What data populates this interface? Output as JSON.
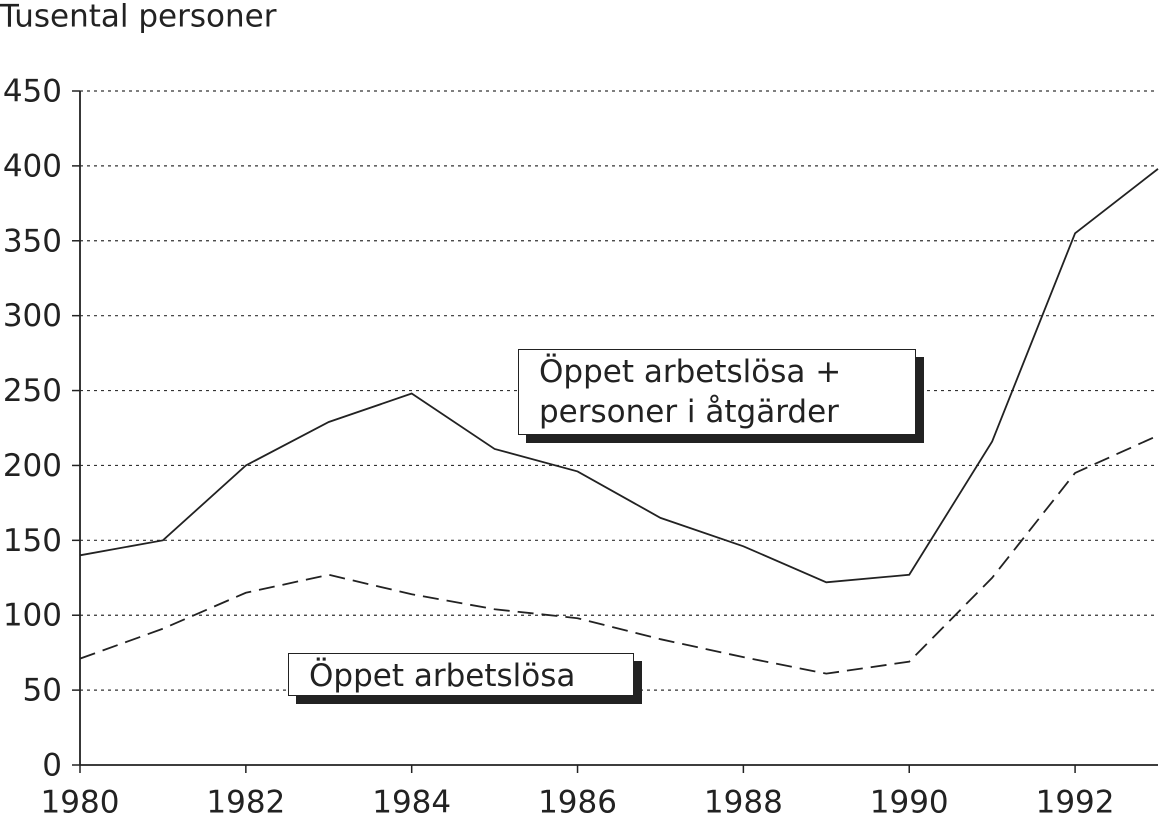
{
  "chart_data": {
    "type": "line",
    "y_axis_label": "Tusental personer",
    "x": [
      1980,
      1981,
      1982,
      1983,
      1984,
      1985,
      1986,
      1987,
      1988,
      1989,
      1990,
      1991,
      1992,
      1993
    ],
    "series": [
      {
        "name": "Öppet arbetslösa + personer i åtgärder",
        "color": "#222222",
        "style": "solid",
        "values": [
          140,
          150,
          200,
          229,
          248,
          211,
          196,
          165,
          146,
          122,
          127,
          216,
          355,
          398
        ]
      },
      {
        "name": "Öppet arbetslösa",
        "color": "#222222",
        "style": "dashed",
        "values": [
          71,
          91,
          115,
          127,
          114,
          104,
          98,
          84,
          72,
          61,
          69,
          125,
          195,
          220
        ]
      }
    ],
    "xlim": [
      1980,
      1993
    ],
    "xticks": [
      1980,
      1982,
      1984,
      1986,
      1988,
      1990,
      1992
    ],
    "ylim": [
      0,
      450
    ],
    "yticks": [
      0,
      50,
      100,
      150,
      200,
      250,
      300,
      350,
      400,
      450
    ],
    "grid": true
  }
}
